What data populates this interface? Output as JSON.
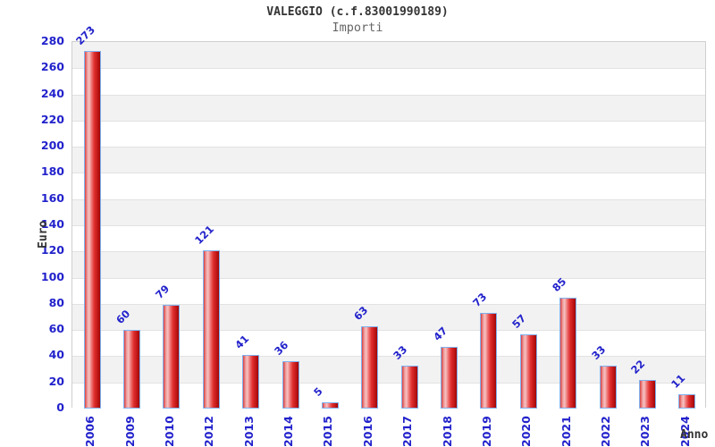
{
  "header": {
    "title": "VALEGGIO (c.f.83001990189)",
    "subtitle": "Importi"
  },
  "chart_data": {
    "type": "bar",
    "title": "VALEGGIO (c.f.83001990189)",
    "subtitle": "Importi",
    "categories": [
      "2006",
      "2009",
      "2010",
      "2012",
      "2013",
      "2014",
      "2015",
      "2016",
      "2017",
      "2018",
      "2019",
      "2020",
      "2021",
      "2022",
      "2023",
      "2024"
    ],
    "values": [
      273,
      60,
      79,
      121,
      41,
      36,
      5,
      63,
      33,
      47,
      73,
      57,
      85,
      33,
      22,
      11
    ],
    "xlabel": "Anno",
    "ylabel": "Euro",
    "ylim": [
      0,
      280
    ],
    "ytick_step": 20,
    "ytick_labels": [
      "0",
      "20",
      "40",
      "60",
      "80",
      "100",
      "120",
      "140",
      "160",
      "180",
      "200",
      "220",
      "240",
      "260",
      "280"
    ],
    "grid": true,
    "legend_position": "none",
    "band_fill_alternating": true,
    "colors": {
      "bar_fill_light": "#f6c0c0",
      "bar_fill_dark": "#9e0808",
      "bar_border": "#7fb2f0",
      "tick_text": "#2222cc",
      "value_label_text": "#2222cc",
      "band_gray": "#f2f2f2",
      "band_white": "#ffffff",
      "gridline": "#e2e2e2",
      "plot_border": "#cfcfcf",
      "title_text": "#333333",
      "subtitle_text": "#666666",
      "axis_title_text": "#333333",
      "background": "#ffffff"
    }
  }
}
